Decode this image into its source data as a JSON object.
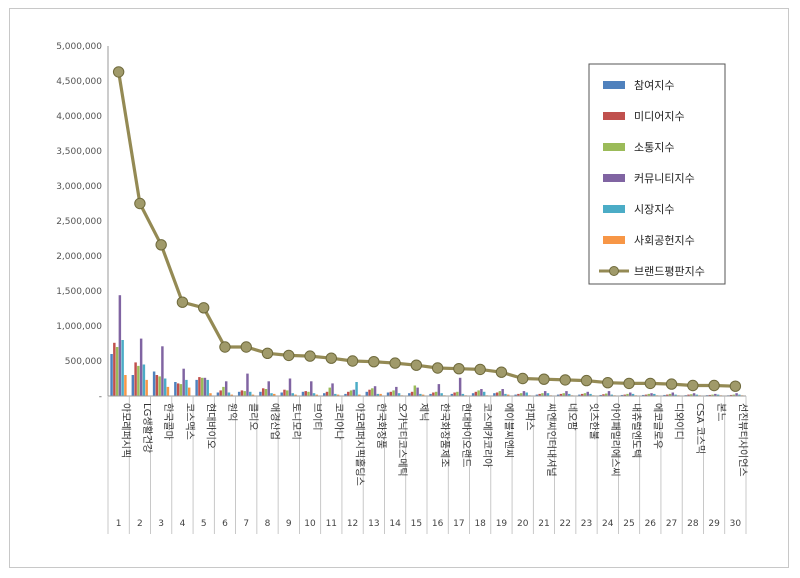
{
  "chart_data": {
    "type": "bar",
    "combo_line_series": "브랜드평판지수",
    "ylim": [
      0,
      5000000
    ],
    "yticks": [
      "-",
      "500,000",
      "1,000,000",
      "1,500,000",
      "2,000,000",
      "2,500,000",
      "3,000,000",
      "3,500,000",
      "4,000,000",
      "4,500,000",
      "5,000,000"
    ],
    "ytick_values": [
      0,
      500000,
      1000000,
      1500000,
      2000000,
      2500000,
      3000000,
      3500000,
      4000000,
      4500000,
      5000000
    ],
    "numbers": [
      "1",
      "2",
      "3",
      "4",
      "5",
      "6",
      "7",
      "8",
      "9",
      "10",
      "11",
      "12",
      "13",
      "14",
      "15",
      "16",
      "17",
      "18",
      "19",
      "20",
      "21",
      "22",
      "23",
      "24",
      "25",
      "26",
      "27",
      "28",
      "29",
      "30"
    ],
    "categories": [
      "아모레퍼시픽",
      "LG생활건강",
      "한국콜마",
      "코스맥스",
      "현대바이오",
      "원익",
      "클리오",
      "애경산업",
      "토니모리",
      "브이티",
      "코리아나",
      "아모레퍼시픽홀딩스",
      "한국화장품",
      "오가닉티코스메틱",
      "제닉",
      "한국화장품제조",
      "현대바이오랜드",
      "코스메카코리아",
      "에이블씨엔씨",
      "라파스",
      "씨엔씨인터내셔널",
      "네오팜",
      "잇츠한불",
      "아이패밀리에스씨",
      "내츄럴엔도텍",
      "에코글로우",
      "디와이디",
      "CSA 코스믹",
      "본느",
      "선진뷰티사이언스"
    ],
    "legend_position": "top-right",
    "series": [
      {
        "name": "참여지수",
        "color": "#4f81bd",
        "values": [
          600000,
          300000,
          350000,
          200000,
          230000,
          50000,
          60000,
          60000,
          50000,
          60000,
          40000,
          30000,
          60000,
          50000,
          40000,
          30000,
          30000,
          40000,
          40000,
          20000,
          20000,
          20000,
          20000,
          15000,
          15000,
          15000,
          15000,
          12000,
          12000,
          10000
        ]
      },
      {
        "name": "미디어지수",
        "color": "#c0504d",
        "values": [
          760000,
          480000,
          300000,
          180000,
          270000,
          80000,
          80000,
          110000,
          90000,
          70000,
          60000,
          60000,
          90000,
          60000,
          60000,
          50000,
          50000,
          60000,
          50000,
          30000,
          30000,
          30000,
          30000,
          25000,
          20000,
          20000,
          20000,
          20000,
          15000,
          15000
        ]
      },
      {
        "name": "소통지수",
        "color": "#9bbb59",
        "values": [
          700000,
          430000,
          280000,
          170000,
          260000,
          130000,
          70000,
          100000,
          80000,
          60000,
          120000,
          80000,
          110000,
          80000,
          150000,
          60000,
          60000,
          80000,
          70000,
          40000,
          40000,
          40000,
          40000,
          35000,
          30000,
          30000,
          30000,
          25000,
          20000,
          20000
        ]
      },
      {
        "name": "커뮤니티지수",
        "color": "#8064a2",
        "values": [
          1440000,
          820000,
          710000,
          390000,
          260000,
          210000,
          320000,
          210000,
          250000,
          210000,
          180000,
          90000,
          140000,
          130000,
          120000,
          170000,
          260000,
          100000,
          100000,
          70000,
          70000,
          70000,
          60000,
          70000,
          50000,
          40000,
          50000,
          40000,
          30000,
          40000
        ]
      },
      {
        "name": "시장지수",
        "color": "#4bacc6",
        "values": [
          800000,
          450000,
          250000,
          230000,
          230000,
          50000,
          60000,
          40000,
          40000,
          40000,
          30000,
          200000,
          30000,
          40000,
          30000,
          40000,
          30000,
          60000,
          30000,
          50000,
          40000,
          30000,
          30000,
          20000,
          30000,
          30000,
          20000,
          20000,
          20000,
          20000
        ]
      },
      {
        "name": "사회공헌지수",
        "color": "#f79646",
        "values": [
          300000,
          230000,
          130000,
          120000,
          40000,
          20000,
          20000,
          30000,
          20000,
          20000,
          20000,
          20000,
          30000,
          10000,
          20000,
          10000,
          10000,
          10000,
          20000,
          10000,
          10000,
          10000,
          10000,
          10000,
          10000,
          10000,
          10000,
          10000,
          10000,
          10000
        ]
      },
      {
        "name": "브랜드평판지수",
        "color": "#948a54",
        "type": "line",
        "values": [
          4630000,
          2750000,
          2160000,
          1340000,
          1260000,
          700000,
          700000,
          610000,
          580000,
          570000,
          540000,
          500000,
          490000,
          470000,
          440000,
          400000,
          390000,
          380000,
          340000,
          250000,
          240000,
          230000,
          220000,
          190000,
          180000,
          180000,
          170000,
          150000,
          150000,
          140000
        ]
      }
    ]
  }
}
